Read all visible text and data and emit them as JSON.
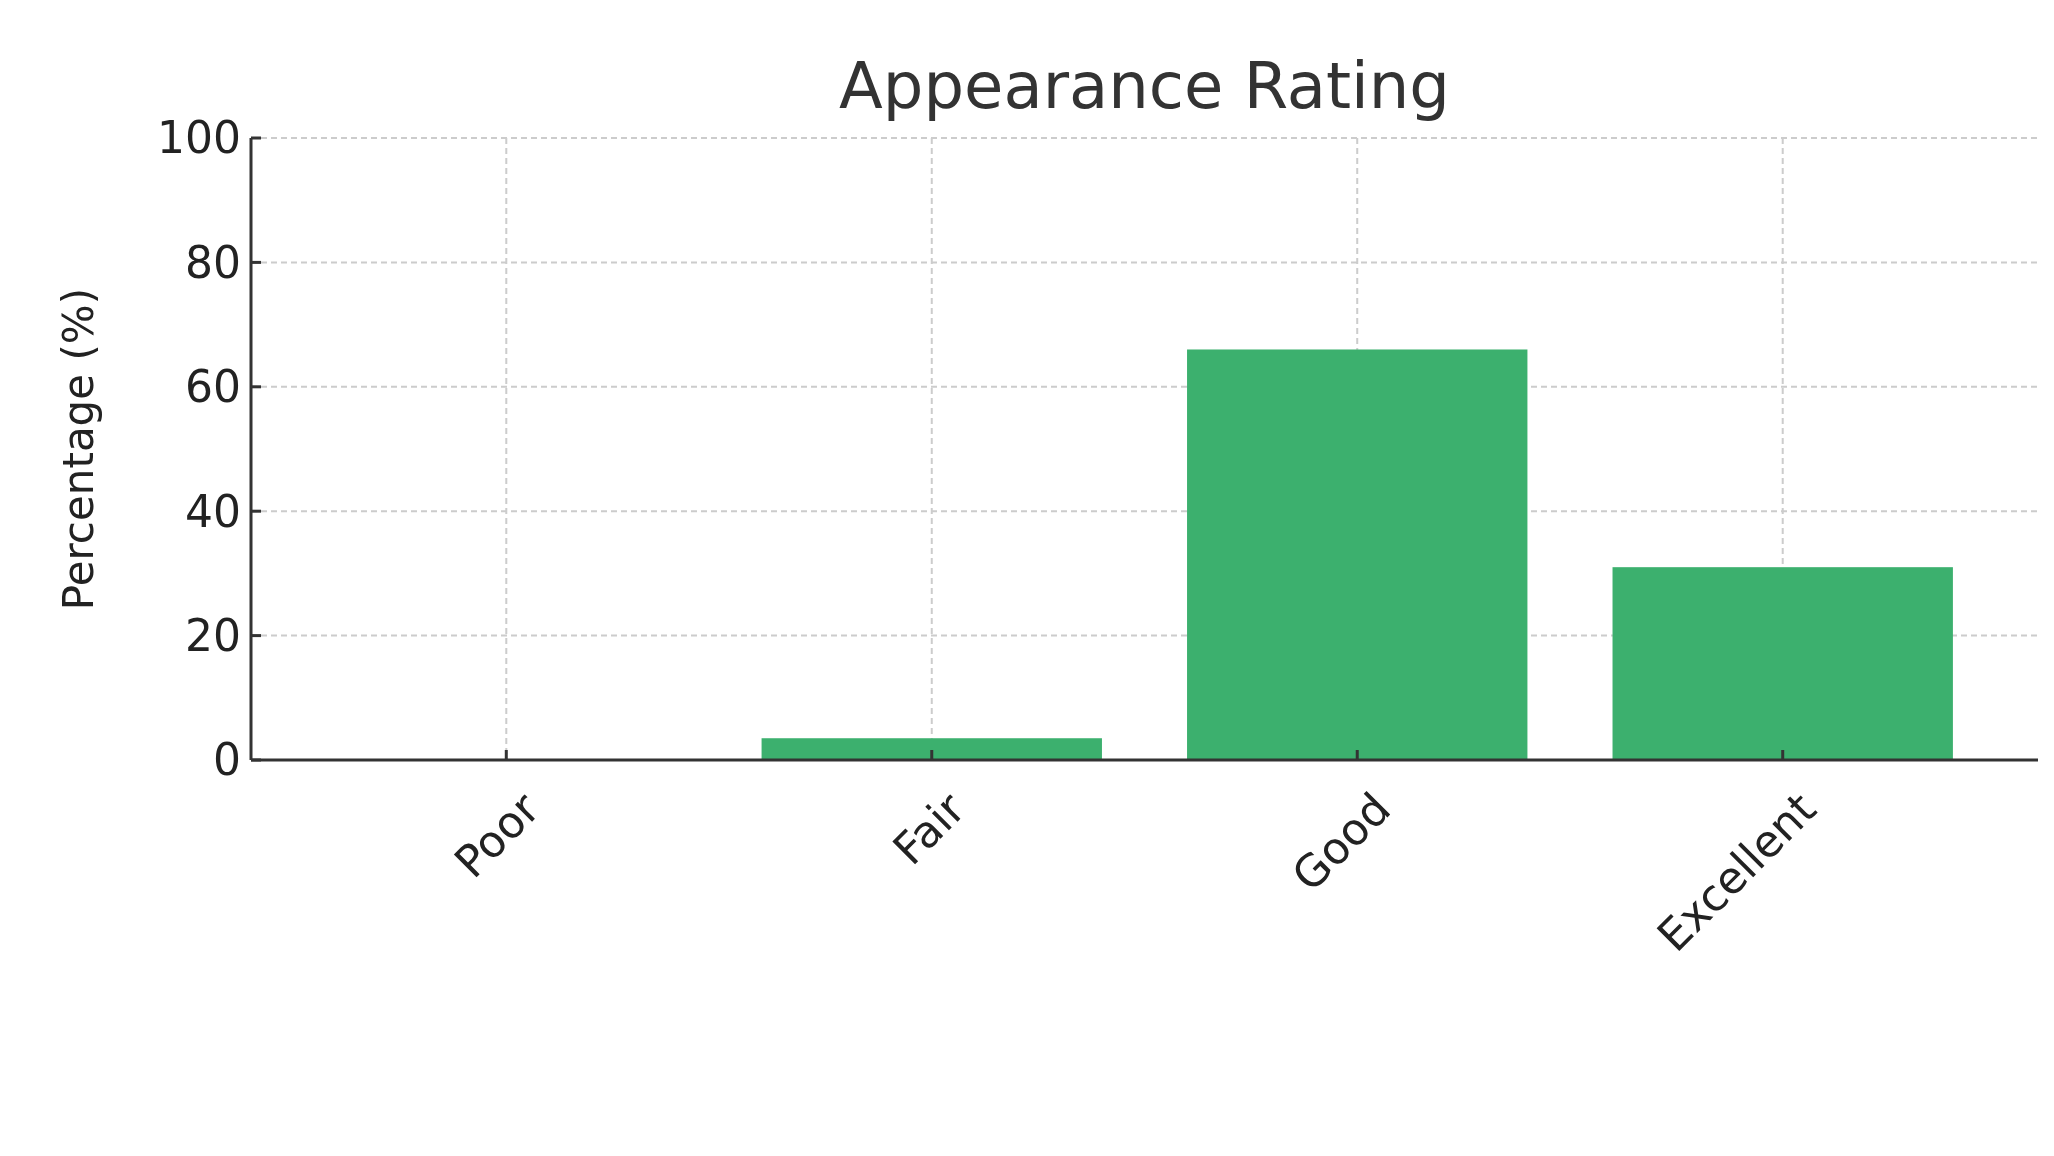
{
  "chart_data": {
    "type": "bar",
    "title": "Appearance Rating",
    "ylabel": "Percentage (%)",
    "categories": [
      "Poor",
      "Fair",
      "Good",
      "Excellent"
    ],
    "values": [
      0,
      3.5,
      66,
      31
    ],
    "color": "#3cb06e",
    "ylim": [
      0,
      100
    ],
    "yticks": [
      0,
      20,
      40,
      60,
      80,
      100
    ],
    "grid": true
  }
}
